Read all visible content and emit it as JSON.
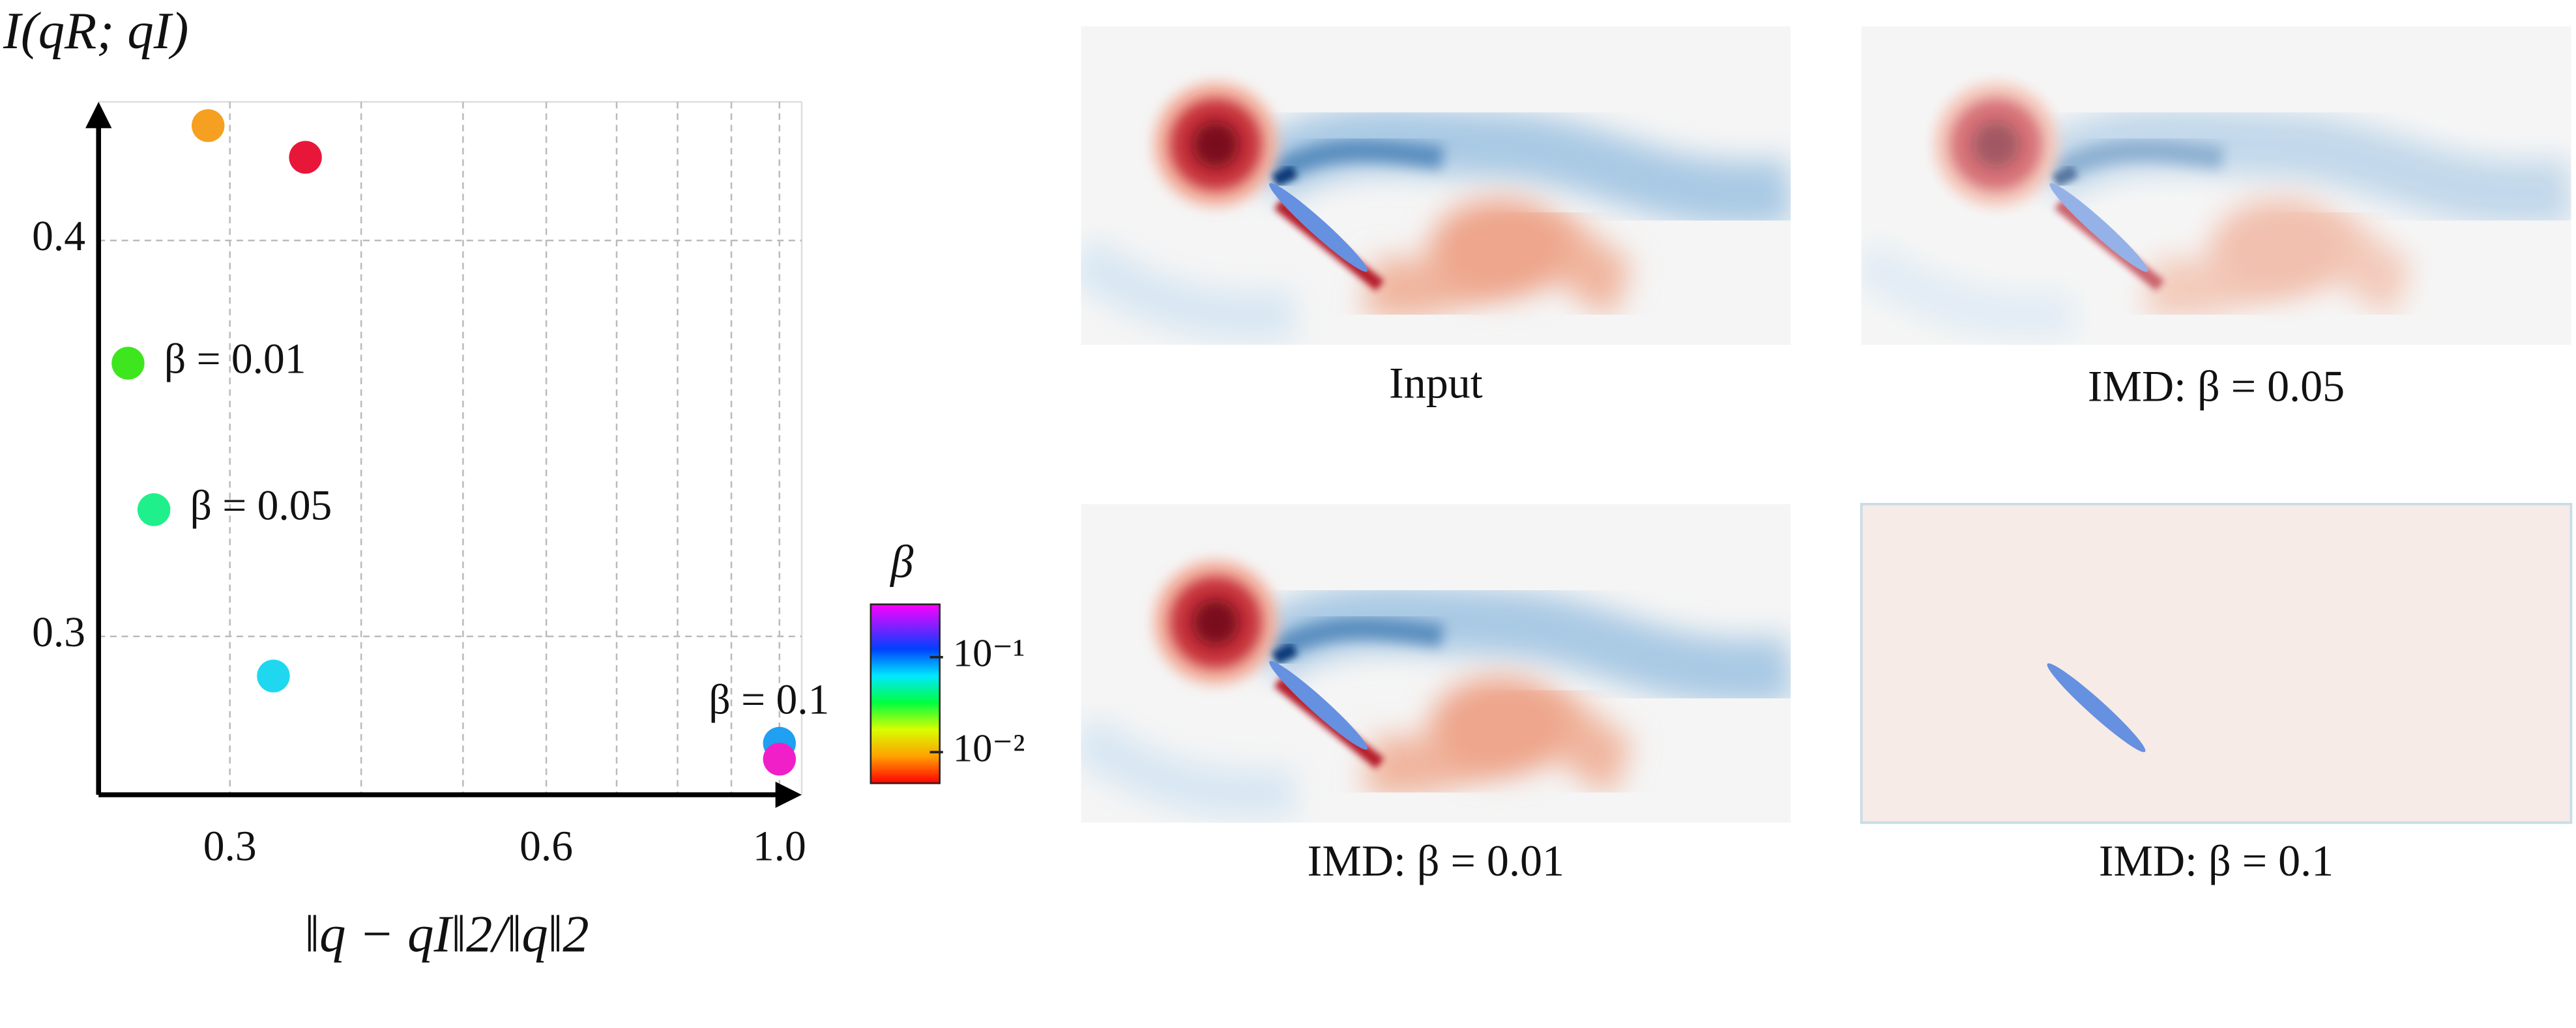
{
  "chart_data": {
    "type": "scatter",
    "xlabel": "‖q − qI‖2/‖q‖2",
    "ylabel": "I(qR; qI)",
    "x": [
      0.286,
      0.354,
      0.24,
      0.254,
      0.33,
      1.0,
      1.0
    ],
    "values": [
      0.429,
      0.421,
      0.369,
      0.332,
      0.29,
      0.273,
      0.269
    ],
    "colors": [
      "#f5a020",
      "#e8173a",
      "#3ee61e",
      "#1ff08c",
      "#1fd8f0",
      "#1fa0f0",
      "#f01fc8"
    ],
    "annotations": [
      "β = 0.01",
      "β = 0.05",
      "β = 0.1"
    ],
    "xscale": "log",
    "xlim": [
      0.225,
      1.05
    ],
    "xticks": [
      0.3,
      0.6,
      {
        "value": 1.0,
        "label": "1.0"
      }
    ],
    "xgrid_minor": [
      0.4,
      0.5,
      0.7,
      0.8,
      0.9
    ],
    "ylim": [
      0.26,
      0.435
    ],
    "yticks": [
      0.3,
      0.4
    ],
    "grid": true,
    "colorbar": {
      "label": "β",
      "scale": "log",
      "lim": [
        0.0047,
        0.36
      ],
      "ticks": [
        {
          "value": 0.1,
          "label": "10⁻¹"
        },
        {
          "value": 0.01,
          "label": "10⁻²"
        }
      ]
    }
  },
  "panels": [
    {
      "caption": "Input"
    },
    {
      "caption": "IMD: β = 0.05"
    },
    {
      "caption": "IMD: β = 0.01"
    },
    {
      "caption": "IMD: β = 0.1"
    }
  ]
}
